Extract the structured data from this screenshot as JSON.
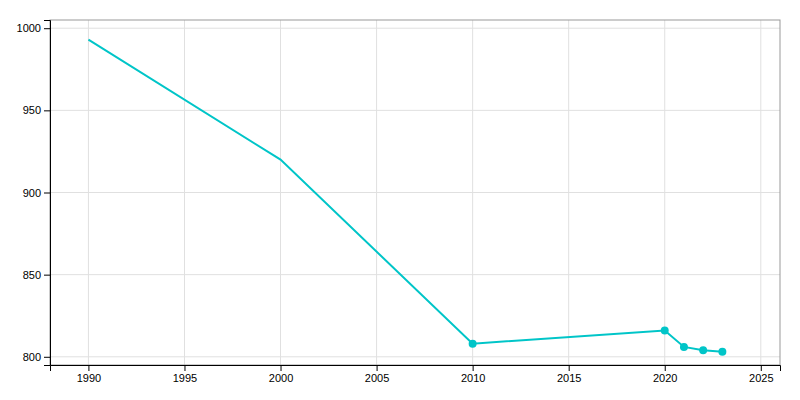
{
  "chart_data": {
    "type": "line",
    "x": [
      1990,
      2000,
      2010,
      2020,
      2021,
      2022,
      2023
    ],
    "series": [
      {
        "type": "line",
        "color": "#00C5C8",
        "values": [
          993,
          920,
          808,
          816,
          806,
          804,
          803
        ]
      },
      {
        "type": "scatter",
        "marker": "circle",
        "color": "#00C5C8",
        "values": [
          null,
          null,
          808,
          816,
          806,
          804,
          803
        ]
      }
    ],
    "xlim": [
      1988,
      2026
    ],
    "ylim": [
      795,
      1005
    ],
    "xticks": [
      1990,
      1995,
      2000,
      2005,
      2010,
      2015,
      2020,
      2025
    ],
    "yticks": [
      800,
      850,
      900,
      950,
      1000
    ],
    "grid": true
  }
}
